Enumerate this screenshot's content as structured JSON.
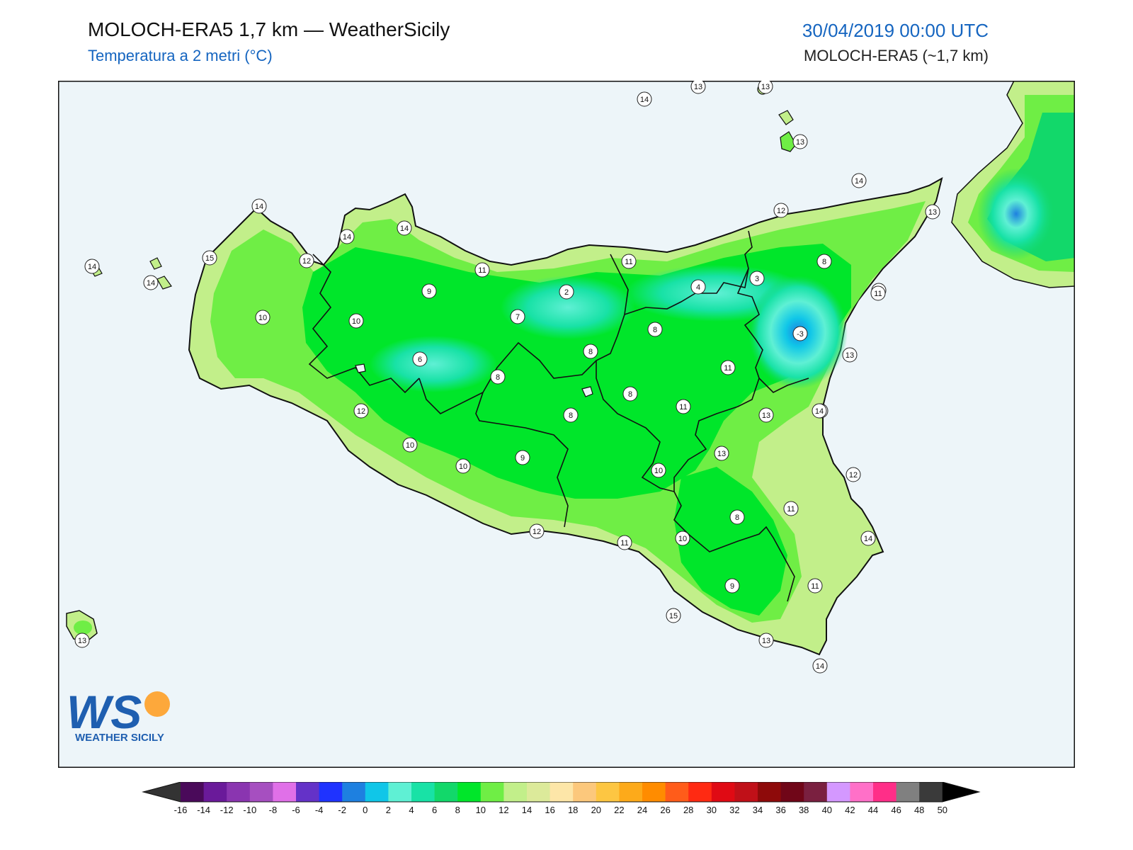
{
  "header": {
    "title": "MOLOCH-ERA5 1,7 km — WeatherSicily",
    "subtitle": "Temperatura a 2 metri (°C)",
    "datetime": "30/04/2019 00:00 UTC",
    "model": "MOLOCH-ERA5 (~1,7 km)"
  },
  "map": {
    "sea_color": "#edf5f9",
    "coast_color": "#111111",
    "land_color": "#33dd33",
    "point_labels": [
      {
        "value": "14"
      },
      {
        "value": "13"
      },
      {
        "value": "13"
      },
      {
        "value": "13"
      },
      {
        "value": "14"
      },
      {
        "value": "13"
      },
      {
        "value": "14"
      },
      {
        "value": "12"
      },
      {
        "value": "14"
      },
      {
        "value": "14"
      },
      {
        "value": "15"
      },
      {
        "value": "12"
      },
      {
        "value": "11"
      },
      {
        "value": "11"
      },
      {
        "value": "8"
      },
      {
        "value": "3"
      },
      {
        "value": "14"
      },
      {
        "value": "14"
      },
      {
        "value": "9"
      },
      {
        "value": "2"
      },
      {
        "value": "4"
      },
      {
        "value": "13"
      },
      {
        "value": "10"
      },
      {
        "value": "10"
      },
      {
        "value": "7"
      },
      {
        "value": "-3"
      },
      {
        "value": "8"
      },
      {
        "value": "8"
      },
      {
        "value": "13"
      },
      {
        "value": "14"
      },
      {
        "value": "6"
      },
      {
        "value": "11"
      },
      {
        "value": "8"
      },
      {
        "value": "11"
      },
      {
        "value": "8"
      },
      {
        "value": "12"
      },
      {
        "value": "11"
      },
      {
        "value": "8"
      },
      {
        "value": "13"
      },
      {
        "value": "14"
      },
      {
        "value": "10"
      },
      {
        "value": "12"
      },
      {
        "value": "9"
      },
      {
        "value": "10"
      },
      {
        "value": "10"
      },
      {
        "value": "13"
      },
      {
        "value": "12"
      },
      {
        "value": "11"
      },
      {
        "value": "8"
      },
      {
        "value": "10"
      },
      {
        "value": "11"
      },
      {
        "value": "14"
      },
      {
        "value": "9"
      },
      {
        "value": "11"
      },
      {
        "value": "15"
      },
      {
        "value": "13"
      },
      {
        "value": "13"
      },
      {
        "value": "14"
      }
    ]
  },
  "logo": {
    "letters": "WS",
    "text": "WEATHER SICILY"
  },
  "colorbar": {
    "ticks": [
      "-16",
      "-14",
      "-12",
      "-10",
      "-8",
      "-6",
      "-4",
      "-2",
      "0",
      "2",
      "4",
      "6",
      "8",
      "10",
      "12",
      "14",
      "16",
      "18",
      "20",
      "22",
      "24",
      "26",
      "28",
      "30",
      "32",
      "34",
      "36",
      "38",
      "40",
      "42",
      "44",
      "46",
      "48",
      "50"
    ],
    "colors": [
      "#4a0a5a",
      "#6a1a9a",
      "#8a35b0",
      "#a64fc0",
      "#e070e8",
      "#6432c8",
      "#1f33ff",
      "#1e80e0",
      "#10c6e8",
      "#5ff0d4",
      "#18e2a6",
      "#12d86a",
      "#00e62a",
      "#6fee45",
      "#c2ef8a",
      "#dcea9a",
      "#fde6a8",
      "#fcc87c",
      "#fdc642",
      "#fdaa1a",
      "#ff8c00",
      "#ff5c1a",
      "#ff2a12",
      "#e00a14",
      "#c01018",
      "#8e0a0a",
      "#700618",
      "#7a2040",
      "#d498ff",
      "#ff70c8",
      "#ff2e88",
      "#808080",
      "#3a3a3a"
    ],
    "under_color": "#333333",
    "over_color": "#000000"
  }
}
